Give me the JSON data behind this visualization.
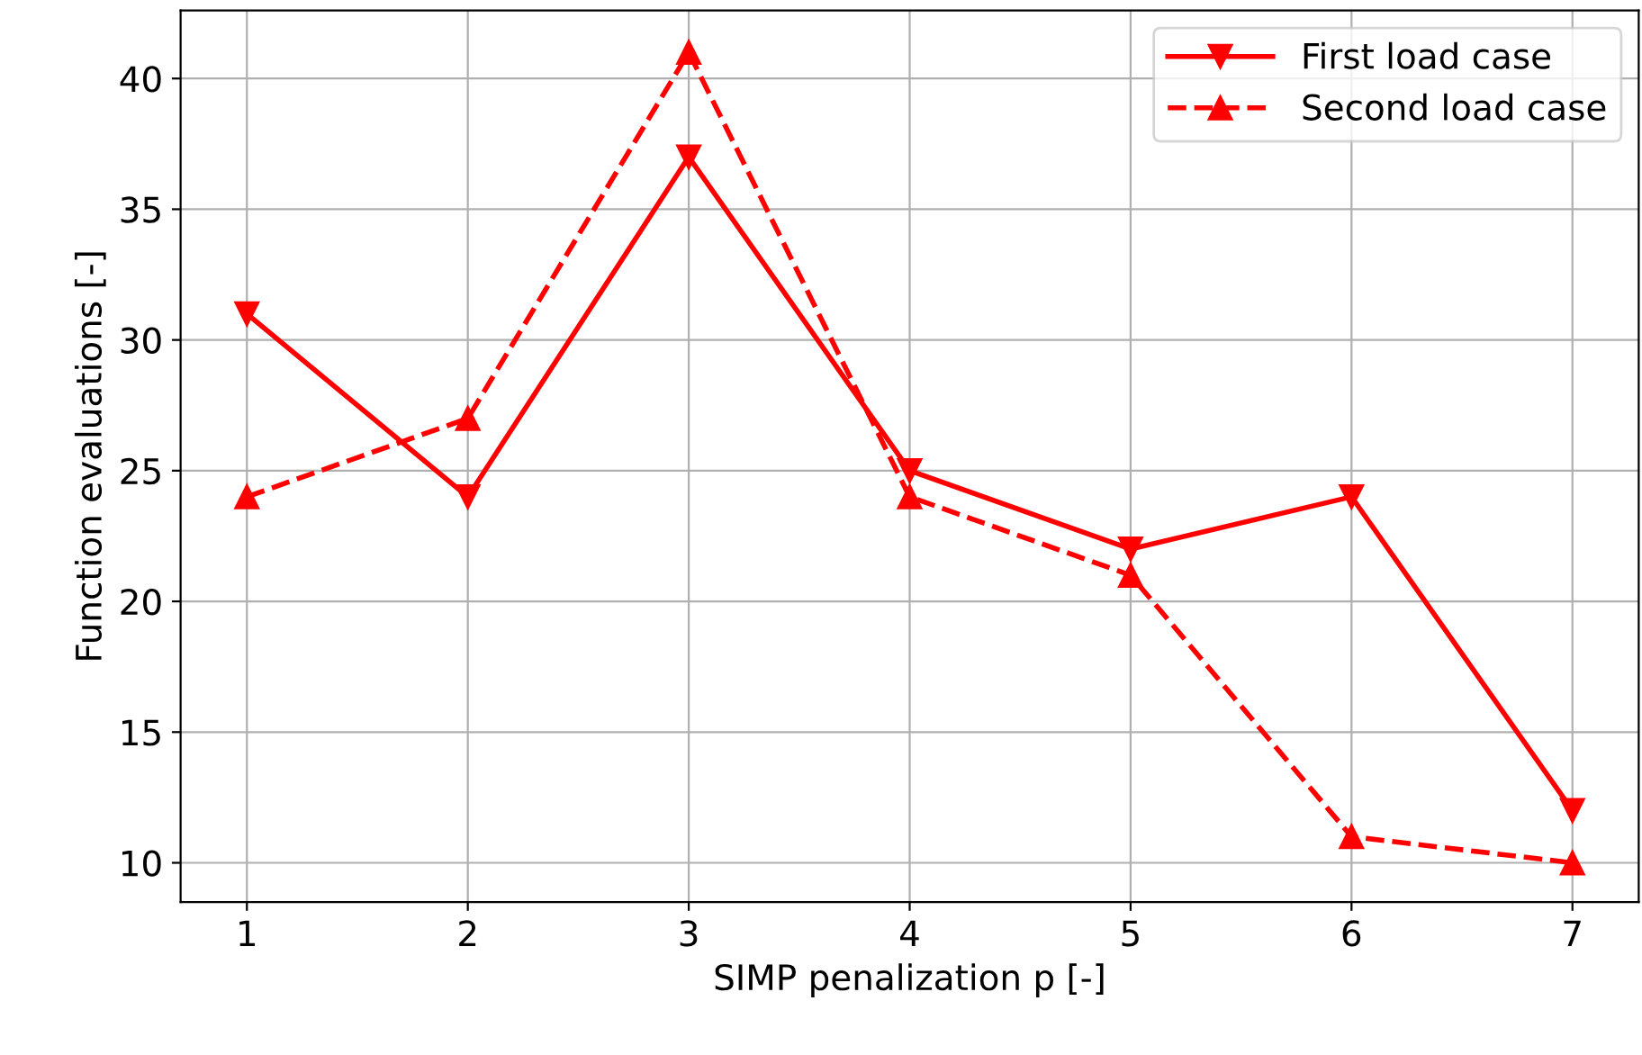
{
  "chart_data": {
    "type": "line",
    "xlabel": "SIMP penalization p [-]",
    "ylabel": "Function evaluations [-]",
    "x": [
      1,
      2,
      3,
      4,
      5,
      6,
      7
    ],
    "series": [
      {
        "name": "First load case",
        "color": "#ff0000",
        "line_style": "solid",
        "marker": "triangle_down",
        "values": [
          31,
          24,
          37,
          25,
          22,
          24,
          12
        ]
      },
      {
        "name": "Second load case",
        "color": "#ff0000",
        "line_style": "dashed",
        "marker": "triangle",
        "values": [
          24,
          27,
          41,
          24,
          21,
          11,
          10
        ]
      }
    ],
    "xlim": [
      0.7,
      7.3
    ],
    "xticks": [
      1,
      2,
      3,
      4,
      5,
      6,
      7
    ],
    "ylim": [
      8.5,
      42.6
    ],
    "yticks": [
      10,
      15,
      20,
      25,
      30,
      35,
      40
    ],
    "grid": true,
    "legend": "top right"
  }
}
